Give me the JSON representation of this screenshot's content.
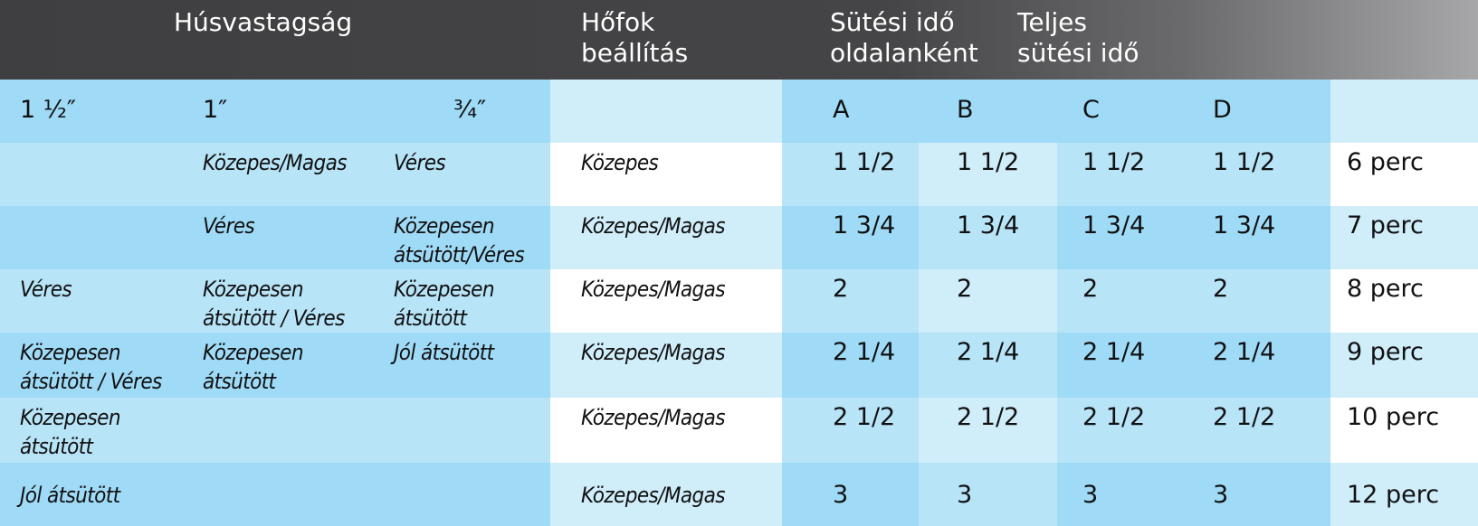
{
  "header": {
    "thickness": "Húsvastagság",
    "heat": "Hőfok\nbeállítás",
    "per_side": "Sütési idő\noldalanként",
    "total": "Teljes\nsütési idő"
  },
  "subheader": [
    "1 ½″",
    "1″",
    "¾″",
    "",
    "A",
    "B",
    "C",
    "D",
    ""
  ],
  "rows": [
    {
      "t15": "",
      "t1": "Közepes/Magas",
      "t34": "Véres",
      "heat": "Közepes",
      "a": "1 1/2",
      "b": "1 1/2",
      "c": "1 1/2",
      "d": "1 1/2",
      "total": "6 perc"
    },
    {
      "t15": "",
      "t1": "Véres",
      "t34": "Közepesen\nátsütött/Véres",
      "heat": "Közepes/Magas",
      "a": "1 3/4",
      "b": "1 3/4",
      "c": "1 3/4",
      "d": "1 3/4",
      "total": "7 perc"
    },
    {
      "t15": "Véres",
      "t1": "Közepesen\nátsütött / Véres",
      "t34": "Közepesen\nátsütött",
      "heat": "Közepes/Magas",
      "a": "2",
      "b": "2",
      "c": "2",
      "d": "2",
      "total": "8 perc"
    },
    {
      "t15": "Közepesen\nátsütött / Véres",
      "t1": "Közepesen\nátsütött",
      "t34": "Jól átsütött",
      "heat": "Közepes/Magas",
      "a": "2 1/4",
      "b": "2 1/4",
      "c": "2 1/4",
      "d": "2 1/4",
      "total": "9 perc"
    },
    {
      "t15": "Közepesen\nátsütött",
      "t1": "",
      "t34": "",
      "heat": "Közepes/Magas",
      "a": "2 1/2",
      "b": "2 1/2",
      "c": "2 1/2",
      "d": "2 1/2",
      "total": "10 perc"
    },
    {
      "t15": "Jól átsütött",
      "t1": "",
      "t34": "",
      "heat": "Közepes/Magas",
      "a": "3",
      "b": "3",
      "c": "3",
      "d": "3",
      "total": "12 perc"
    }
  ],
  "colors": {
    "header_dark": "#3f3f41",
    "blue_1": "#9fdaf6",
    "blue_2": "#b8e4f8",
    "blue_3": "#d0edfa",
    "white": "#ffffff"
  }
}
